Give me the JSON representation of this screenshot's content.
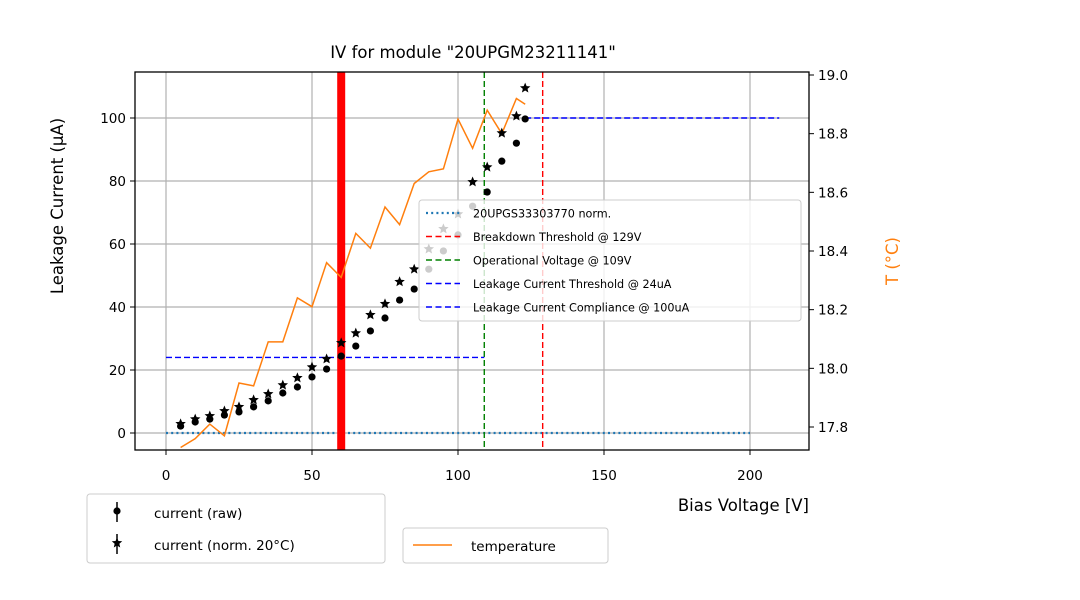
{
  "chart_data": {
    "type": "scatter",
    "title": "IV for module \"20UPGM23211141\"",
    "xlabel": "Bias Voltage [V]",
    "ylabel": "Leakage Current (µA)",
    "y2label": "T ($^\\circ$C)",
    "y2label_display": "T (°C)",
    "xlim": [
      -10,
      220
    ],
    "ylim": [
      -5,
      115
    ],
    "y2lim": [
      17.72,
      19.02
    ],
    "xticks": [
      0,
      50,
      100,
      150,
      200
    ],
    "yticks": [
      0,
      20,
      40,
      60,
      80,
      100
    ],
    "y2ticks": [
      17.8,
      18.0,
      18.2,
      18.4,
      18.6,
      18.8,
      19.0
    ],
    "xtick_labels": [
      "0",
      "50",
      "100",
      "150",
      "200"
    ],
    "ytick_labels": [
      "0",
      "20",
      "40",
      "60",
      "80",
      "100"
    ],
    "y2tick_labels": [
      "17.8",
      "18.0",
      "18.2",
      "18.4",
      "18.6",
      "18.8",
      "19.0"
    ],
    "grid": true,
    "series": [
      {
        "name": "current (raw)",
        "marker": "circle",
        "color": "#000000",
        "x": [
          5,
          10,
          15,
          20,
          25,
          30,
          35,
          40,
          45,
          50,
          55,
          60,
          65,
          70,
          75,
          80,
          85,
          90,
          95,
          100,
          105,
          110,
          115,
          120,
          123
        ],
        "y": [
          2.2,
          3.5,
          4.4,
          5.7,
          6.7,
          8.3,
          10.2,
          12.7,
          14.6,
          17.8,
          20.3,
          24.4,
          27.6,
          32.4,
          36.5,
          42.2,
          45.7,
          52.0,
          57.8,
          62.9,
          72.0,
          76.5,
          86.3,
          92.0,
          99.7
        ]
      },
      {
        "name": "current (norm. 20°C)",
        "marker": "star",
        "color": "#000000",
        "x": [
          5,
          10,
          15,
          20,
          25,
          30,
          35,
          40,
          45,
          50,
          55,
          60,
          65,
          70,
          75,
          80,
          85,
          90,
          95,
          100,
          105,
          110,
          115,
          120,
          123
        ],
        "y": [
          2.9,
          4.4,
          5.4,
          7.0,
          8.3,
          10.5,
          12.4,
          15.2,
          17.5,
          20.9,
          23.5,
          28.6,
          31.7,
          37.5,
          41.0,
          48.0,
          52.0,
          58.4,
          64.8,
          69.5,
          79.7,
          84.4,
          95.2,
          100.6,
          109.5
        ]
      },
      {
        "name": "temperature",
        "axis": "right",
        "type": "line",
        "color": "#ff7f0e",
        "x": [
          5,
          10,
          15,
          20,
          25,
          30,
          35,
          40,
          45,
          50,
          55,
          60,
          65,
          70,
          75,
          80,
          85,
          90,
          95,
          100,
          105,
          110,
          115,
          120,
          123
        ],
        "y": [
          17.73,
          17.76,
          17.81,
          17.77,
          17.95,
          17.94,
          18.09,
          18.09,
          18.24,
          18.21,
          18.36,
          18.31,
          18.46,
          18.41,
          18.55,
          18.49,
          18.63,
          18.67,
          18.68,
          18.85,
          18.75,
          18.88,
          18.8,
          18.92,
          18.9
        ]
      }
    ],
    "reference_lines": [
      {
        "name": "20UPGS33303770 norm.",
        "orientation": "horizontal",
        "value": 0,
        "x_range": [
          0,
          200
        ],
        "color": "#1f77b4",
        "style": "dotted"
      },
      {
        "name": "Breakdown Threshold @ 129V",
        "orientation": "vertical",
        "value": 129,
        "color": "#ff0000",
        "style": "dashed"
      },
      {
        "name": "Operational Voltage @ 109V",
        "orientation": "vertical",
        "value": 109,
        "color": "#008000",
        "style": "dashed"
      },
      {
        "name": "Leakage Current Threshold @ 24uA",
        "orientation": "horizontal",
        "value": 24,
        "x_range": [
          0,
          109
        ],
        "color": "#0000ff",
        "style": "dashed"
      },
      {
        "name": "Leakage Current Compliance @ 100uA",
        "orientation": "horizontal",
        "value": 100,
        "x_range": [
          123,
          210
        ],
        "color": "#0000ff",
        "style": "dashed"
      },
      {
        "name": "highlight",
        "orientation": "vertical",
        "value": 60,
        "color": "#ff0000",
        "style": "solid-thick"
      }
    ],
    "legends": [
      {
        "placement": "center-right",
        "entries": [
          "20UPGS33303770 norm.",
          "Breakdown Threshold @ 129V",
          "Operational Voltage @ 109V",
          "Leakage Current Threshold @ 24uA",
          "Leakage Current Compliance @ 100uA"
        ]
      },
      {
        "placement": "below-left",
        "entries": [
          "current (raw)",
          "current (norm. 20°C)"
        ]
      },
      {
        "placement": "below-center",
        "entries": [
          "temperature"
        ]
      }
    ]
  }
}
